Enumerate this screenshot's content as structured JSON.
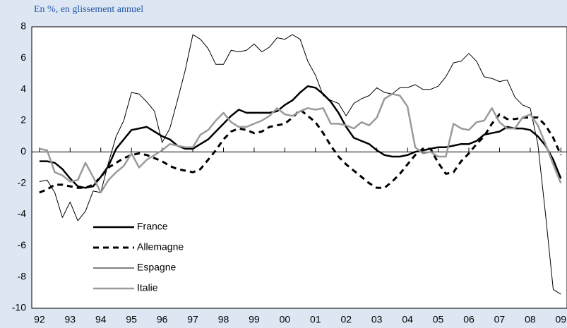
{
  "chart_data": {
    "type": "line",
    "subtitle": "En %, en glissement annuel",
    "x": [
      92,
      92.25,
      92.5,
      92.75,
      93,
      93.25,
      93.5,
      93.75,
      94,
      94.25,
      94.5,
      94.75,
      95,
      95.25,
      95.5,
      95.75,
      96,
      96.25,
      96.5,
      96.75,
      97,
      97.25,
      97.5,
      97.75,
      98,
      98.25,
      98.5,
      98.75,
      99,
      99.25,
      99.5,
      99.75,
      100,
      100.25,
      100.5,
      100.75,
      101,
      101.25,
      101.5,
      101.75,
      102,
      102.25,
      102.5,
      102.75,
      103,
      103.25,
      103.5,
      103.75,
      104,
      104.25,
      104.5,
      104.75,
      105,
      105.25,
      105.5,
      105.75,
      106,
      106.25,
      106.5,
      106.75,
      107,
      107.25,
      107.5,
      107.75,
      108,
      108.25,
      108.5,
      108.75,
      109
    ],
    "series": [
      {
        "name": "France",
        "color": "#000000",
        "line_width": 2.5,
        "dashed": false,
        "values": [
          -0.6,
          -0.6,
          -0.7,
          -1.1,
          -1.7,
          -2.2,
          -2.3,
          -2.2,
          -1.6,
          -0.9,
          0.2,
          0.8,
          1.4,
          1.5,
          1.6,
          1.3,
          1.0,
          0.8,
          0.4,
          0.2,
          0.2,
          0.5,
          0.8,
          1.3,
          1.8,
          2.3,
          2.7,
          2.5,
          2.5,
          2.5,
          2.5,
          2.6,
          3.0,
          3.3,
          3.8,
          4.2,
          4.1,
          3.7,
          3.2,
          2.5,
          1.6,
          0.9,
          0.7,
          0.5,
          0.1,
          -0.2,
          -0.3,
          -0.3,
          -0.2,
          0.0,
          0.1,
          0.2,
          0.3,
          0.3,
          0.4,
          0.5,
          0.5,
          0.7,
          1.1,
          1.2,
          1.3,
          1.6,
          1.5,
          1.5,
          1.4,
          1.0,
          0.4,
          -0.5,
          -1.7
        ]
      },
      {
        "name": "Allemagne",
        "color": "#000000",
        "line_width": 3,
        "dashed": true,
        "values": [
          -2.6,
          -2.4,
          -2.1,
          -2.1,
          -2.2,
          -2.3,
          -2.3,
          -2.1,
          -1.6,
          -1.0,
          -0.7,
          -0.4,
          -0.2,
          -0.1,
          -0.2,
          -0.4,
          -0.6,
          -0.9,
          -1.1,
          -1.2,
          -1.3,
          -1.1,
          -0.5,
          0.1,
          0.8,
          1.3,
          1.5,
          1.4,
          1.2,
          1.3,
          1.6,
          1.7,
          1.8,
          2.2,
          2.7,
          2.3,
          1.9,
          1.2,
          0.4,
          -0.3,
          -0.8,
          -1.2,
          -1.6,
          -2.0,
          -2.3,
          -2.3,
          -1.9,
          -1.4,
          -0.8,
          -0.2,
          0.2,
          0.2,
          -0.7,
          -1.4,
          -1.3,
          -0.6,
          -0.1,
          0.5,
          1.0,
          1.8,
          2.4,
          2.1,
          2.1,
          2.2,
          2.2,
          2.2,
          1.7,
          0.9,
          -0.2
        ]
      },
      {
        "name": "Espagne",
        "color": "#000000",
        "line_width": 1,
        "dashed": false,
        "values": [
          -1.9,
          -1.8,
          -2.6,
          -4.2,
          -3.2,
          -4.4,
          -3.8,
          -2.5,
          -2.6,
          -0.7,
          1.0,
          2.0,
          3.8,
          3.7,
          3.2,
          2.6,
          0.6,
          1.5,
          3.3,
          5.2,
          7.5,
          7.2,
          6.6,
          5.6,
          5.6,
          6.5,
          6.4,
          6.5,
          6.9,
          6.4,
          6.7,
          7.3,
          7.2,
          7.5,
          7.2,
          5.8,
          4.9,
          3.6,
          3.3,
          3.1,
          2.3,
          3.1,
          3.4,
          3.6,
          4.1,
          3.8,
          3.7,
          4.1,
          4.1,
          4.3,
          4.0,
          4.0,
          4.2,
          4.8,
          5.7,
          5.8,
          6.3,
          5.8,
          4.8,
          4.7,
          4.5,
          4.6,
          3.5,
          3.0,
          2.8,
          0.5,
          -4.0,
          -8.8,
          -9.1
        ]
      },
      {
        "name": "Italie",
        "color": "#9a9a9a",
        "line_width": 2.5,
        "dashed": false,
        "values": [
          0.2,
          0.1,
          -1.3,
          -1.5,
          -1.9,
          -1.8,
          -0.7,
          -1.6,
          -2.6,
          -1.8,
          -1.3,
          -0.9,
          -0.1,
          -1.0,
          -0.5,
          -0.2,
          0.1,
          0.5,
          0.4,
          0.3,
          0.3,
          1.1,
          1.4,
          2.0,
          2.5,
          1.9,
          1.6,
          1.6,
          1.8,
          2.0,
          2.3,
          2.8,
          2.4,
          2.3,
          2.6,
          2.8,
          2.7,
          2.8,
          1.8,
          1.8,
          1.7,
          1.5,
          1.9,
          1.7,
          2.2,
          3.4,
          3.7,
          3.6,
          2.9,
          0.3,
          -0.1,
          0.0,
          -0.3,
          -0.3,
          1.8,
          1.5,
          1.4,
          1.9,
          2.0,
          2.8,
          1.9,
          1.5,
          1.5,
          2.2,
          2.4,
          1.7,
          0.5,
          -0.8,
          -2.0
        ]
      }
    ],
    "xlim": [
      91.75,
      109.2
    ],
    "xticks": [
      {
        "value": 92,
        "label": "92"
      },
      {
        "value": 93,
        "label": "93"
      },
      {
        "value": 94,
        "label": "94"
      },
      {
        "value": 95,
        "label": "95"
      },
      {
        "value": 96,
        "label": "96"
      },
      {
        "value": 97,
        "label": "97"
      },
      {
        "value": 98,
        "label": "98"
      },
      {
        "value": 99,
        "label": "99"
      },
      {
        "value": 100,
        "label": "00"
      },
      {
        "value": 101,
        "label": "01"
      },
      {
        "value": 102,
        "label": "02"
      },
      {
        "value": 103,
        "label": "03"
      },
      {
        "value": 104,
        "label": "04"
      },
      {
        "value": 105,
        "label": "05"
      },
      {
        "value": 106,
        "label": "06"
      },
      {
        "value": 107,
        "label": "07"
      },
      {
        "value": 108,
        "label": "08"
      },
      {
        "value": 109,
        "label": "09"
      }
    ],
    "ylim": [
      -10,
      8
    ],
    "yticks": [
      -10,
      -8,
      -6,
      -4,
      -2,
      0,
      2,
      4,
      6,
      8
    ],
    "zero_line": true,
    "legend": "lower left"
  }
}
